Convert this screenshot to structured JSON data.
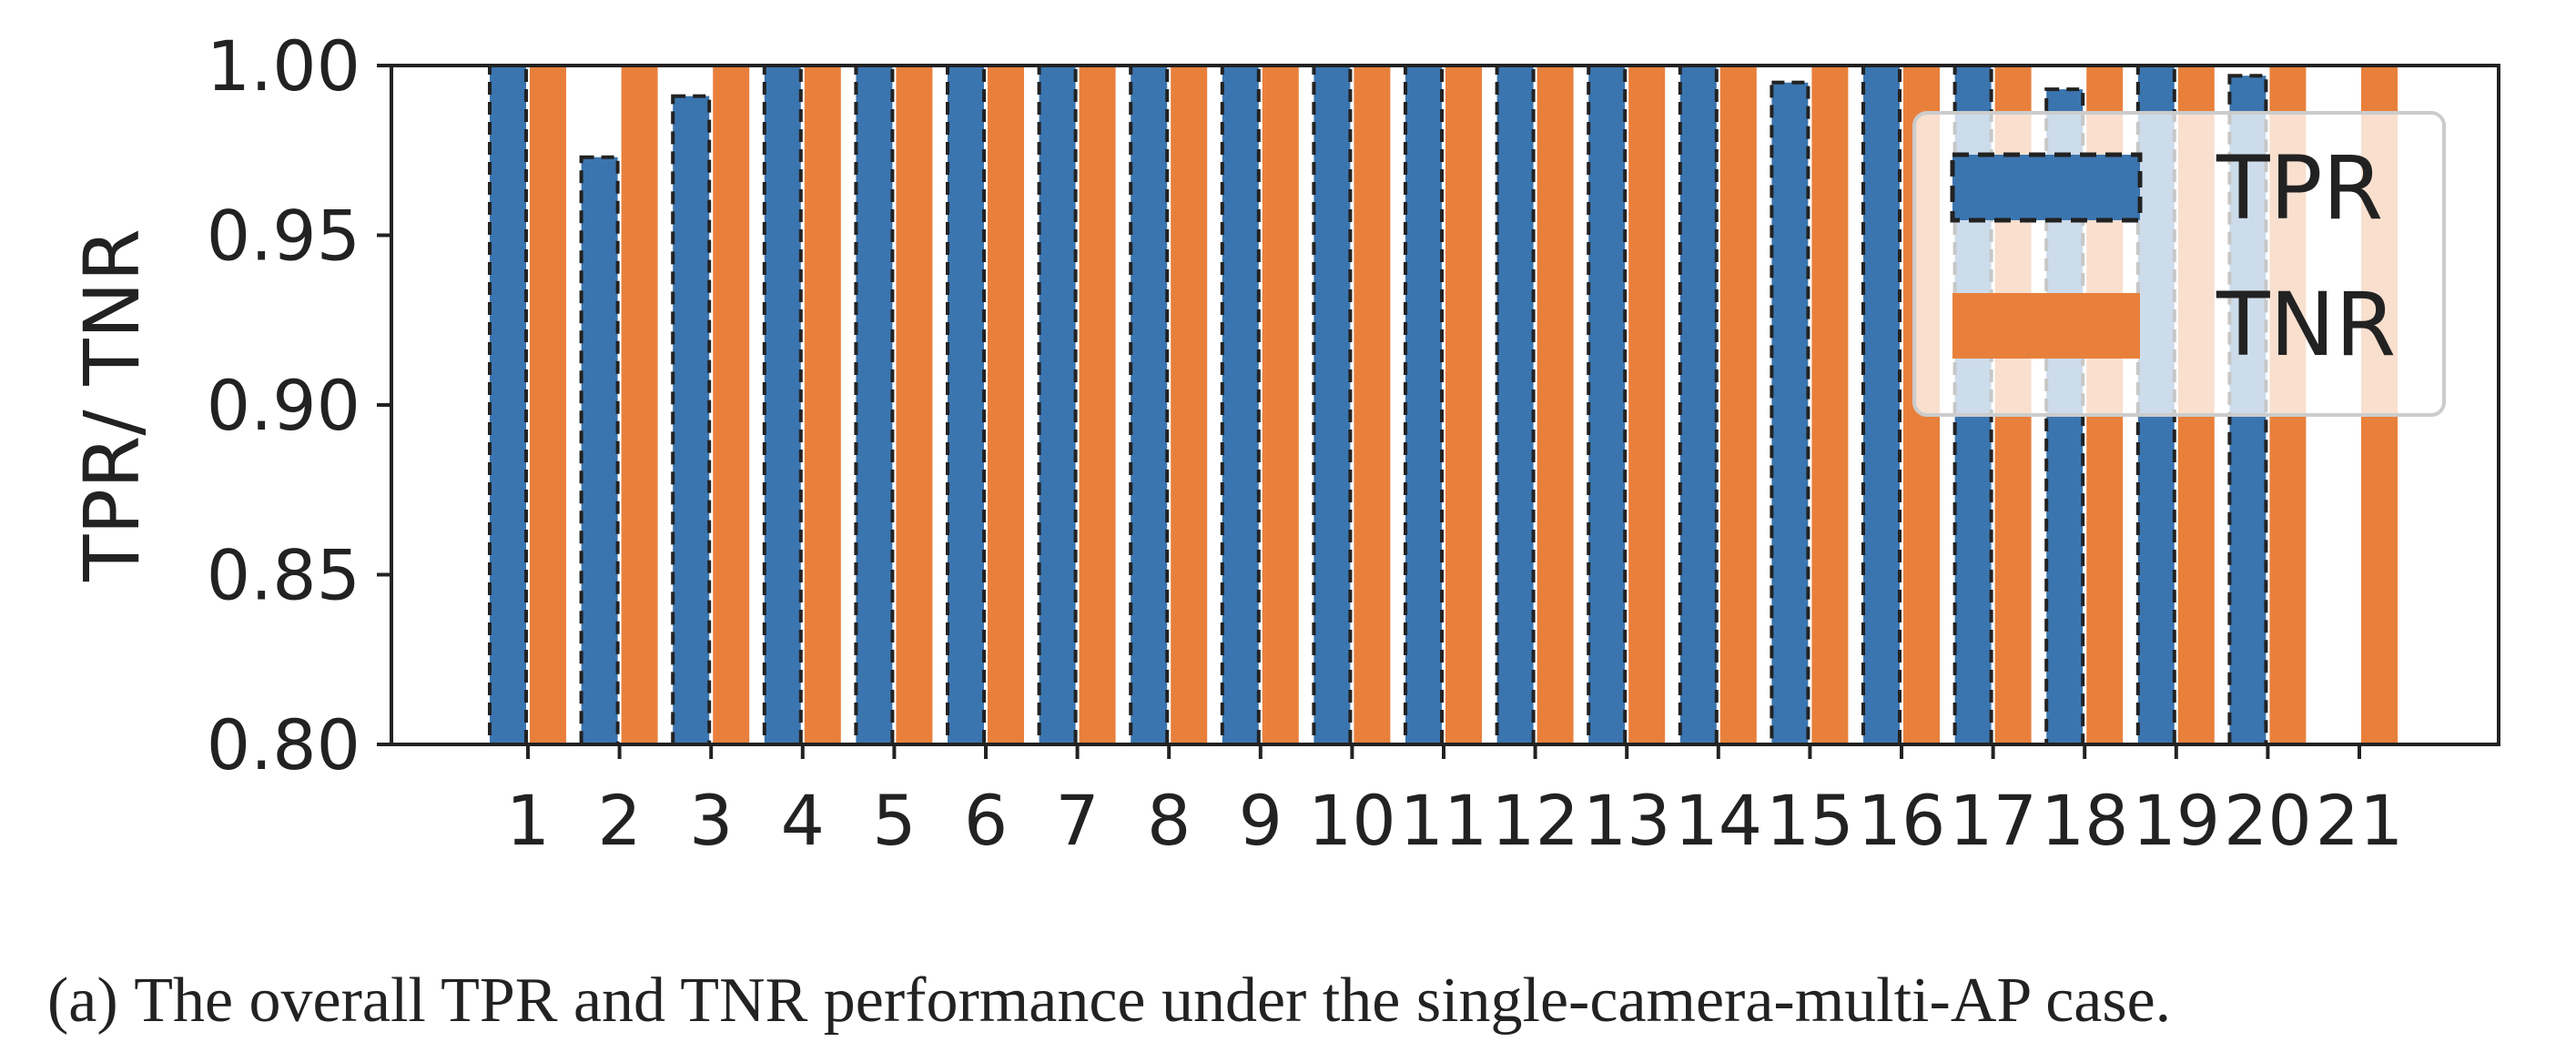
{
  "chart_data": {
    "type": "bar",
    "categories": [
      "1",
      "2",
      "3",
      "4",
      "5",
      "6",
      "7",
      "8",
      "9",
      "10",
      "11",
      "12",
      "13",
      "14",
      "15",
      "16",
      "17",
      "18",
      "19",
      "20",
      "21"
    ],
    "series": [
      {
        "name": "TPR",
        "color": "#3b75af",
        "edge": "dashed",
        "values": [
          1.0,
          0.973,
          0.991,
          1.0,
          1.0,
          1.0,
          1.0,
          1.0,
          1.0,
          1.0,
          1.0,
          1.0,
          1.0,
          1.0,
          0.995,
          1.0,
          1.0,
          0.993,
          1.0,
          0.997,
          null
        ]
      },
      {
        "name": "TNR",
        "color": "#e8803c",
        "values": [
          1.0,
          1.0,
          1.0,
          1.0,
          1.0,
          1.0,
          1.0,
          1.0,
          1.0,
          1.0,
          1.0,
          1.0,
          1.0,
          1.0,
          1.0,
          1.0,
          1.0,
          1.0,
          1.0,
          1.0,
          1.0
        ]
      }
    ],
    "ylabel": "TPR/ TNR",
    "ylim": [
      0.8,
      1.0
    ],
    "yticks": [
      "0.80",
      "0.85",
      "0.90",
      "0.95",
      "1.00"
    ],
    "legend_position": "upper-right",
    "grid": false
  },
  "caption": {
    "label": "(a)",
    "text": "The overall TPR and TNR performance under the single-camera-multi-AP case."
  }
}
